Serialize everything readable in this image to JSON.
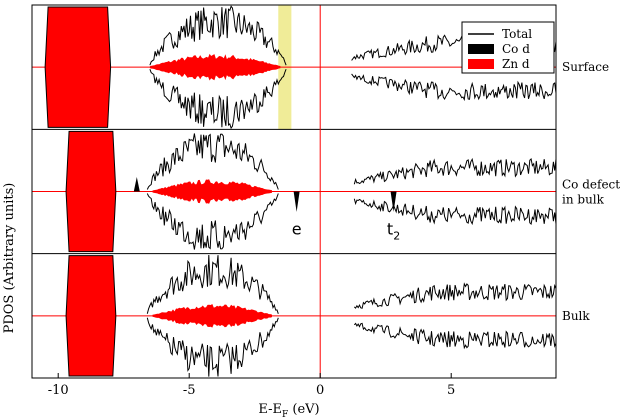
{
  "chart_data": {
    "type": "line",
    "title": "",
    "xlabel_main": "E-E",
    "xlabel_sub": "F",
    "xlabel_unit": " (eV)",
    "ylabel": "PDOS (Arbitrary units)",
    "xlim": [
      -11,
      9
    ],
    "xticks": [
      -10,
      -5,
      0,
      5
    ],
    "fermi_level": 0,
    "grid": false,
    "legend": {
      "placement": "top-right",
      "entries": [
        {
          "label": "Total",
          "color": "#000000",
          "style": "line"
        },
        {
          "label": "Co d",
          "color": "#000000",
          "style": "fill"
        },
        {
          "label": "Zn d",
          "color": "#ff0000",
          "style": "fill"
        }
      ]
    },
    "highlight_band": {
      "x": [
        -1.6,
        -1.1
      ],
      "color": "#f0ec98"
    },
    "colors": {
      "zn_d": "#ff0000",
      "total": "#000000",
      "co_d": "#000000",
      "fermi": "#ff0000",
      "baseline": "#ff0000"
    },
    "panels": [
      {
        "name": "Surface",
        "label_lines": [
          "Surface"
        ],
        "zn_d_block": [
          -10.5,
          -8.0
        ],
        "total_regions": [
          {
            "x0": -6.5,
            "x1": -1.3,
            "peak": 1.0
          },
          {
            "x0": 1.2,
            "x1": 9.0,
            "peak": 0.5
          }
        ],
        "zn_d_inner": {
          "x0": -6.5,
          "x1": -1.5,
          "peak": 0.2
        },
        "co_d_peaks": [],
        "annotations": []
      },
      {
        "name": "Co defect in bulk",
        "label_lines": [
          "Co defect",
          "in bulk"
        ],
        "zn_d_block": [
          -9.7,
          -7.8
        ],
        "total_regions": [
          {
            "x0": -6.6,
            "x1": -1.6,
            "peak": 1.0
          },
          {
            "x0": 1.3,
            "x1": 9.0,
            "peak": 0.5
          }
        ],
        "zn_d_inner": {
          "x0": -6.4,
          "x1": -1.8,
          "peak": 0.18
        },
        "co_d_peaks": [
          {
            "x": -7.0,
            "height": 0.25
          },
          {
            "x": -0.9,
            "height": -0.35
          },
          {
            "x": 2.8,
            "height": -0.35
          }
        ],
        "annotations": [
          {
            "text": "e",
            "x": -0.9,
            "level": -0.6
          },
          {
            "text": "t",
            "sub": "2",
            "x": 2.8,
            "level": -0.6
          }
        ]
      },
      {
        "name": "Bulk",
        "label_lines": [
          "Bulk"
        ],
        "zn_d_block": [
          -9.7,
          -7.8
        ],
        "total_regions": [
          {
            "x0": -6.6,
            "x1": -1.6,
            "peak": 1.0
          },
          {
            "x0": 1.3,
            "x1": 9.0,
            "peak": 0.5
          }
        ],
        "zn_d_inner": {
          "x0": -6.4,
          "x1": -1.8,
          "peak": 0.18
        },
        "co_d_peaks": [],
        "annotations": []
      }
    ]
  }
}
